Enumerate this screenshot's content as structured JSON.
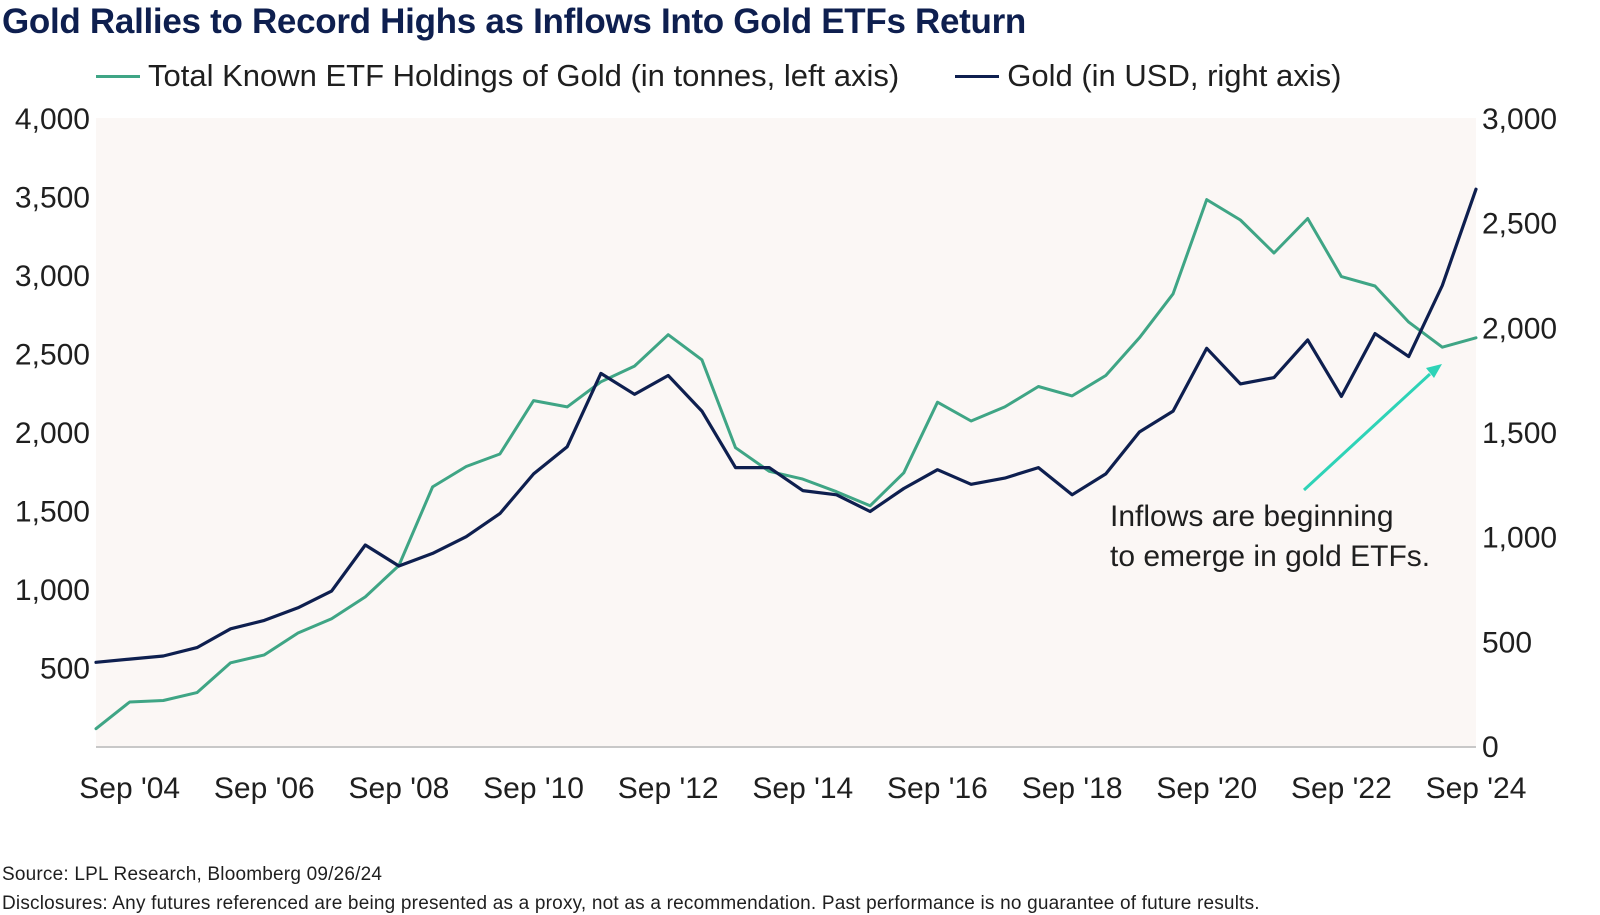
{
  "chart_data": {
    "type": "line",
    "title": "Gold Rallies to Record Highs as Inflows Into Gold ETFs Return",
    "x_range": [
      "2004-03",
      "2024-09"
    ],
    "x_ticks": [
      {
        "label": "Sep '04",
        "date": "2004-09"
      },
      {
        "label": "Sep '06",
        "date": "2006-09"
      },
      {
        "label": "Sep '08",
        "date": "2008-09"
      },
      {
        "label": "Sep '10",
        "date": "2010-09"
      },
      {
        "label": "Sep '12",
        "date": "2012-09"
      },
      {
        "label": "Sep '14",
        "date": "2014-09"
      },
      {
        "label": "Sep '16",
        "date": "2016-09"
      },
      {
        "label": "Sep '18",
        "date": "2018-09"
      },
      {
        "label": "Sep '20",
        "date": "2020-09"
      },
      {
        "label": "Sep '22",
        "date": "2022-09"
      },
      {
        "label": "Sep '24",
        "date": "2024-09"
      }
    ],
    "y_left": {
      "min": 0,
      "max": 4000,
      "ticks": [
        "500",
        "1,000",
        "1,500",
        "2,000",
        "2,500",
        "3,000",
        "3,500",
        "4,000"
      ],
      "tick_values": [
        500,
        1000,
        1500,
        2000,
        2500,
        3000,
        3500,
        4000
      ]
    },
    "y_right": {
      "min": 0,
      "max": 3000,
      "ticks": [
        "0",
        "500",
        "1,000",
        "1,500",
        "2,000",
        "2,500",
        "3,000"
      ],
      "tick_values": [
        0,
        500,
        1000,
        1500,
        2000,
        2500,
        3000
      ]
    },
    "grid": false,
    "legend_position": "top",
    "series": [
      {
        "name": "Total Known ETF Holdings of Gold (in tonnes, left axis)",
        "axis": "left",
        "color": "#3fa585",
        "points": [
          [
            "2004-03",
            110
          ],
          [
            "2004-09",
            280
          ],
          [
            "2005-03",
            290
          ],
          [
            "2005-09",
            340
          ],
          [
            "2006-03",
            530
          ],
          [
            "2006-09",
            580
          ],
          [
            "2007-03",
            720
          ],
          [
            "2007-09",
            810
          ],
          [
            "2008-03",
            950
          ],
          [
            "2008-09",
            1150
          ],
          [
            "2009-03",
            1650
          ],
          [
            "2009-09",
            1780
          ],
          [
            "2010-03",
            1860
          ],
          [
            "2010-09",
            2200
          ],
          [
            "2011-03",
            2160
          ],
          [
            "2011-09",
            2320
          ],
          [
            "2012-03",
            2420
          ],
          [
            "2012-09",
            2620
          ],
          [
            "2013-03",
            2460
          ],
          [
            "2013-09",
            1900
          ],
          [
            "2014-03",
            1750
          ],
          [
            "2014-09",
            1700
          ],
          [
            "2015-03",
            1620
          ],
          [
            "2015-09",
            1530
          ],
          [
            "2016-03",
            1740
          ],
          [
            "2016-09",
            2190
          ],
          [
            "2017-03",
            2070
          ],
          [
            "2017-09",
            2160
          ],
          [
            "2018-03",
            2290
          ],
          [
            "2018-09",
            2230
          ],
          [
            "2019-03",
            2360
          ],
          [
            "2019-09",
            2600
          ],
          [
            "2020-03",
            2880
          ],
          [
            "2020-09",
            3480
          ],
          [
            "2021-03",
            3350
          ],
          [
            "2021-09",
            3140
          ],
          [
            "2022-03",
            3360
          ],
          [
            "2022-09",
            2990
          ],
          [
            "2023-03",
            2930
          ],
          [
            "2023-09",
            2700
          ],
          [
            "2024-03",
            2540
          ],
          [
            "2024-09",
            2600
          ]
        ]
      },
      {
        "name": "Gold (in USD, right axis)",
        "axis": "right",
        "color": "#0e1f4f",
        "points": [
          [
            "2004-03",
            400
          ],
          [
            "2004-09",
            415
          ],
          [
            "2005-03",
            430
          ],
          [
            "2005-09",
            470
          ],
          [
            "2006-03",
            560
          ],
          [
            "2006-09",
            600
          ],
          [
            "2007-03",
            660
          ],
          [
            "2007-09",
            740
          ],
          [
            "2008-03",
            960
          ],
          [
            "2008-09",
            860
          ],
          [
            "2009-03",
            920
          ],
          [
            "2009-09",
            1000
          ],
          [
            "2010-03",
            1110
          ],
          [
            "2010-09",
            1300
          ],
          [
            "2011-03",
            1430
          ],
          [
            "2011-09",
            1780
          ],
          [
            "2012-03",
            1680
          ],
          [
            "2012-09",
            1770
          ],
          [
            "2013-03",
            1600
          ],
          [
            "2013-09",
            1330
          ],
          [
            "2014-03",
            1330
          ],
          [
            "2014-09",
            1220
          ],
          [
            "2015-03",
            1200
          ],
          [
            "2015-09",
            1120
          ],
          [
            "2016-03",
            1230
          ],
          [
            "2016-09",
            1320
          ],
          [
            "2017-03",
            1250
          ],
          [
            "2017-09",
            1280
          ],
          [
            "2018-03",
            1330
          ],
          [
            "2018-09",
            1200
          ],
          [
            "2019-03",
            1300
          ],
          [
            "2019-09",
            1500
          ],
          [
            "2020-03",
            1600
          ],
          [
            "2020-09",
            1900
          ],
          [
            "2021-03",
            1730
          ],
          [
            "2021-09",
            1760
          ],
          [
            "2022-03",
            1940
          ],
          [
            "2022-09",
            1670
          ],
          [
            "2023-03",
            1970
          ],
          [
            "2023-09",
            1860
          ],
          [
            "2024-03",
            2200
          ],
          [
            "2024-09",
            2660
          ]
        ]
      }
    ],
    "annotation": {
      "lines": [
        "Inflows are beginning",
        "to emerge in gold ETFs."
      ],
      "color": "#2ed3b7",
      "arrow_from": [
        "2021-09",
        2450
      ],
      "arrow_to": [
        "2024-03",
        2400
      ]
    }
  },
  "source": "Source: LPL Research, Bloomberg 09/26/24",
  "disclosure": "Disclosures: Any futures referenced are being presented as a proxy, not as a recommendation. Past performance is no guarantee of future results."
}
